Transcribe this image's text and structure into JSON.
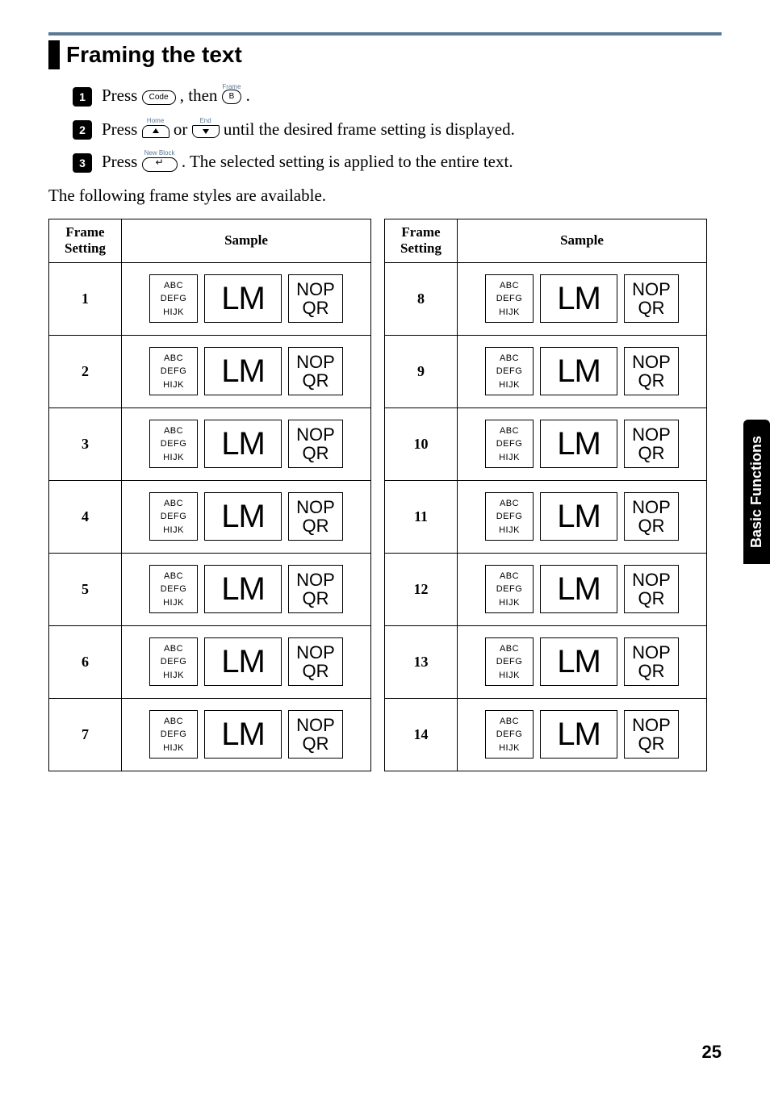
{
  "heading": "Framing the text",
  "steps": [
    {
      "num": "1",
      "pre": "Press ",
      "key1_upper": "",
      "key1": "Code",
      "mid": ", then ",
      "key2_upper": "Frame",
      "key2": "B",
      "post": "."
    },
    {
      "num": "2",
      "pre": "Press ",
      "arrow1_upper": "Home",
      "arrow1": "up",
      "mid": " or ",
      "arrow2_upper": "End",
      "arrow2": "down",
      "post": " until the desired frame setting is displayed."
    },
    {
      "num": "3",
      "pre": "Press ",
      "enter_upper": "New Block",
      "post": ". The selected setting is applied to the entire text."
    }
  ],
  "intro": "The following frame styles are available.",
  "table_headers": {
    "setting": "Frame Setting",
    "sample": "Sample"
  },
  "sample_text": {
    "a": "ABC",
    "b": "DEFG",
    "c": "HIJK",
    "m": "LM",
    "n": "NOP",
    "q": "QR"
  },
  "left_rows": [
    "1",
    "2",
    "3",
    "4",
    "5",
    "6",
    "7"
  ],
  "right_rows": [
    "8",
    "9",
    "10",
    "11",
    "12",
    "13",
    "14"
  ],
  "side_tab": "Basic Functions",
  "page_number": "25"
}
